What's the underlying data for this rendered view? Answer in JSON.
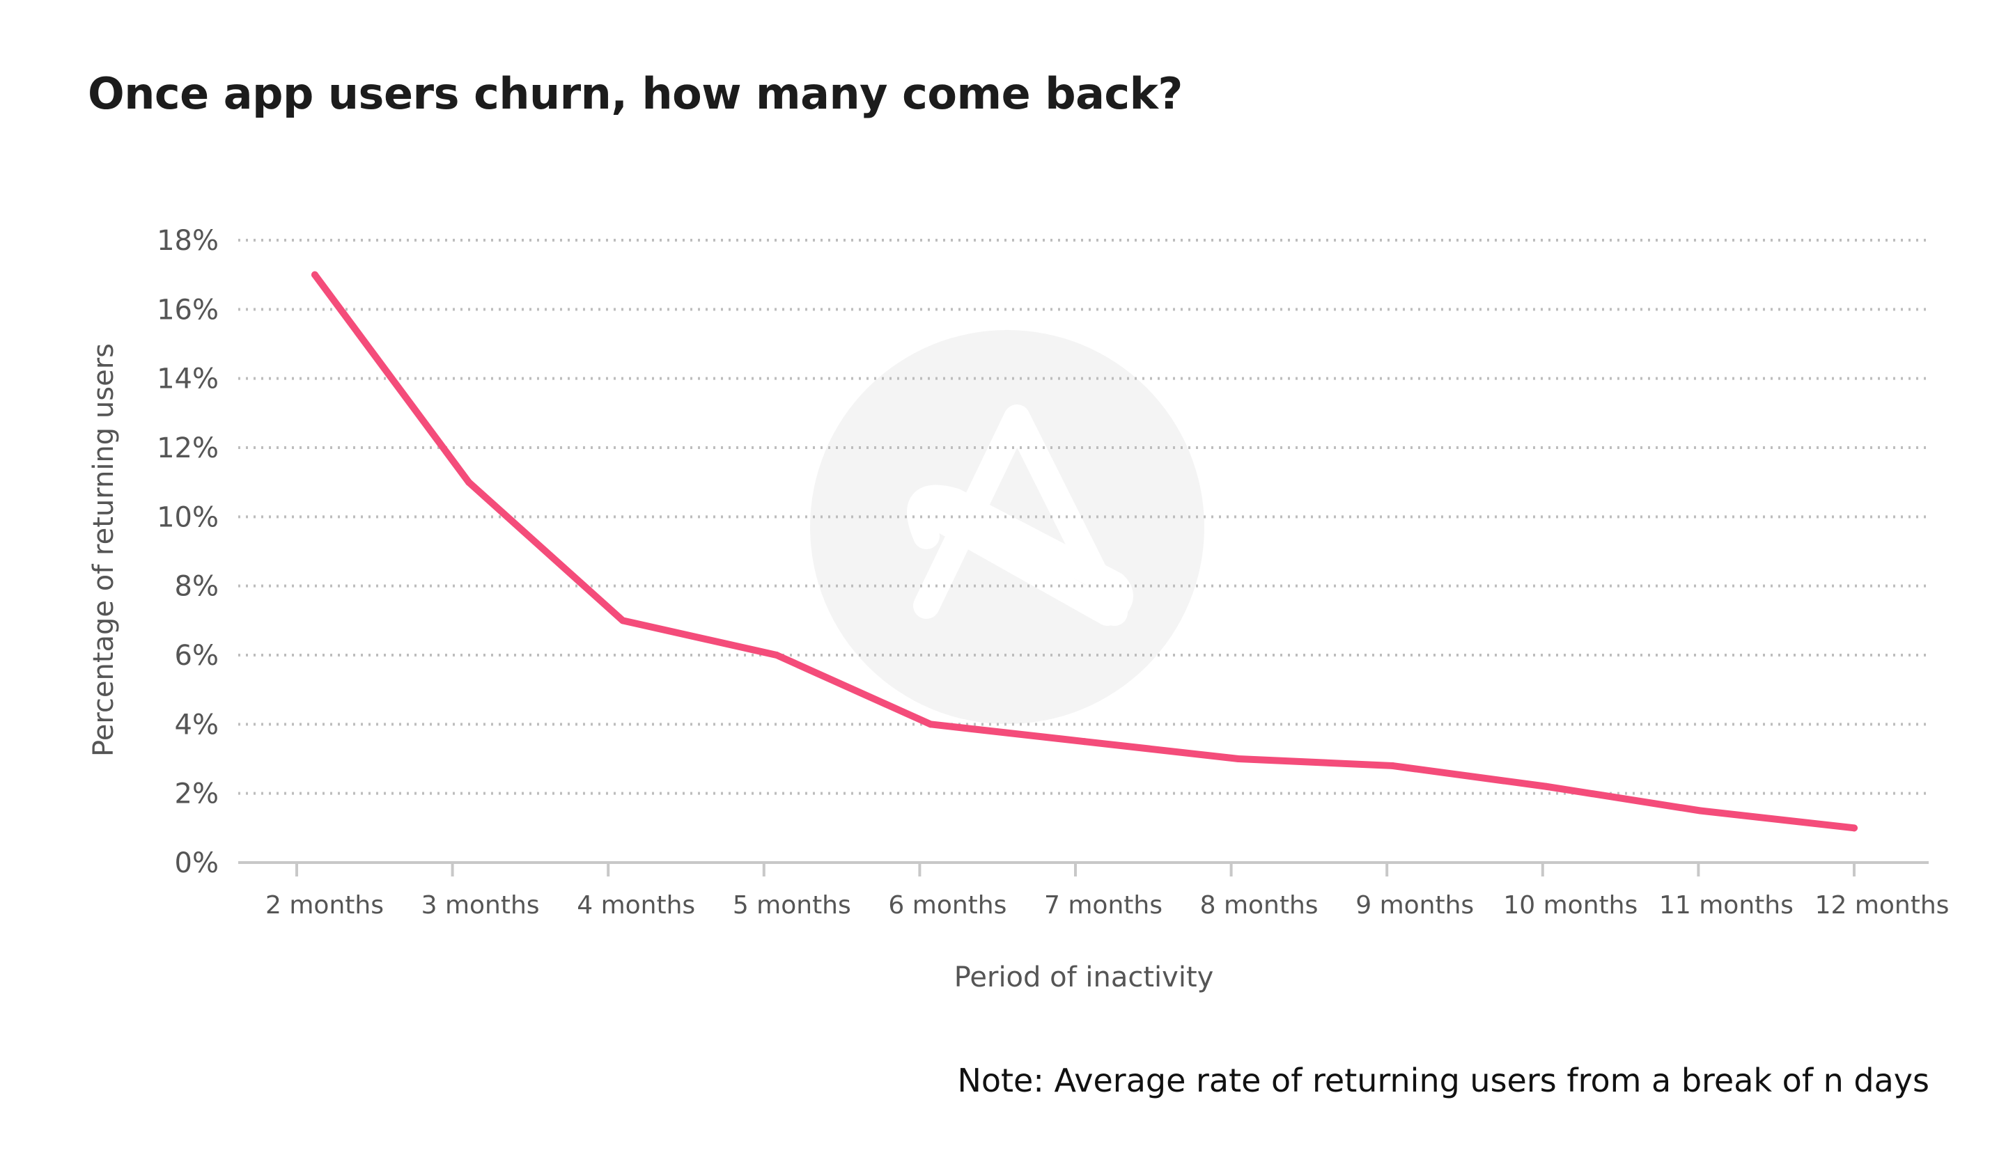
{
  "chart_data": {
    "type": "line",
    "title": "Once app users churn, how many come back?",
    "xlabel": "Period of inactivity",
    "ylabel": "Percentage of returning users",
    "categories": [
      "2 months",
      "3 months",
      "4 months",
      "5 months",
      "6 months",
      "7 months",
      "8 months",
      "9 months",
      "10 months",
      "11 months",
      "12 months"
    ],
    "series": [
      {
        "values": [
          17,
          11,
          7,
          6,
          4,
          3.5,
          3,
          2.8,
          2.2,
          1.5,
          1.0
        ],
        "color": "#f44c7a"
      }
    ],
    "ylim": [
      0,
      18
    ],
    "yticks": [
      "0%",
      "2%",
      "4%",
      "6%",
      "8%",
      "10%",
      "12%",
      "14%",
      "16%",
      "18%"
    ],
    "grid": true,
    "note": "Note: Average rate of returning users from a break of n days",
    "watermark": "logo-icon"
  }
}
